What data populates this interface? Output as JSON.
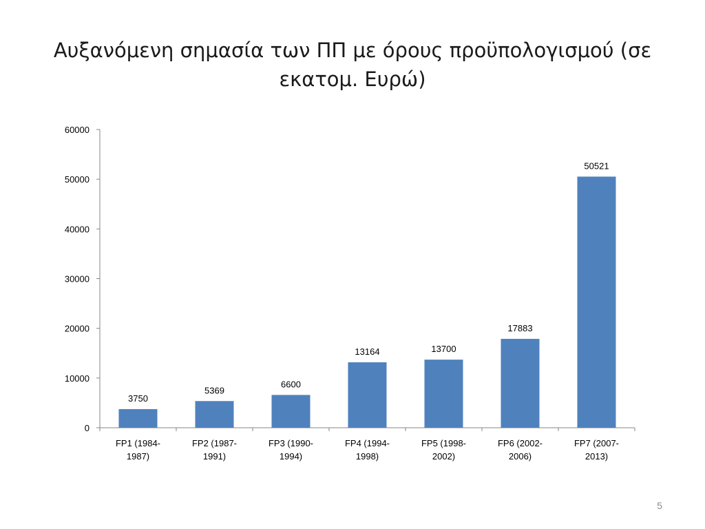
{
  "slide": {
    "title": "Αυξανόμενη σημασία των ΠΠ με όρους προϋπολογισμού (σε εκατομ. Ευρώ)",
    "page_number": "5"
  },
  "colors": {
    "bar": "#4f81bd",
    "axis": "#868686",
    "text": "#000000"
  },
  "chart_data": {
    "type": "bar",
    "title": "",
    "xlabel": "",
    "ylabel": "",
    "categories": [
      [
        "FP1 (1984-",
        "1987)"
      ],
      [
        "FP2 (1987-",
        "1991)"
      ],
      [
        "FP3 (1990-",
        "1994)"
      ],
      [
        "FP4 (1994-",
        "1998)"
      ],
      [
        "FP5 (1998-",
        "2002)"
      ],
      [
        "FP6 (2002-",
        "2006)"
      ],
      [
        "FP7 (2007-",
        "2013)"
      ]
    ],
    "values": [
      3750,
      5369,
      6600,
      13164,
      13700,
      17883,
      50521
    ],
    "data_labels": [
      "3750",
      "5369",
      "6600",
      "13164",
      "13700",
      "17883",
      "50521"
    ],
    "ylim": [
      0,
      60000
    ],
    "yticks": [
      0,
      10000,
      20000,
      30000,
      40000,
      50000,
      60000
    ],
    "grid": false,
    "legend": "none"
  }
}
